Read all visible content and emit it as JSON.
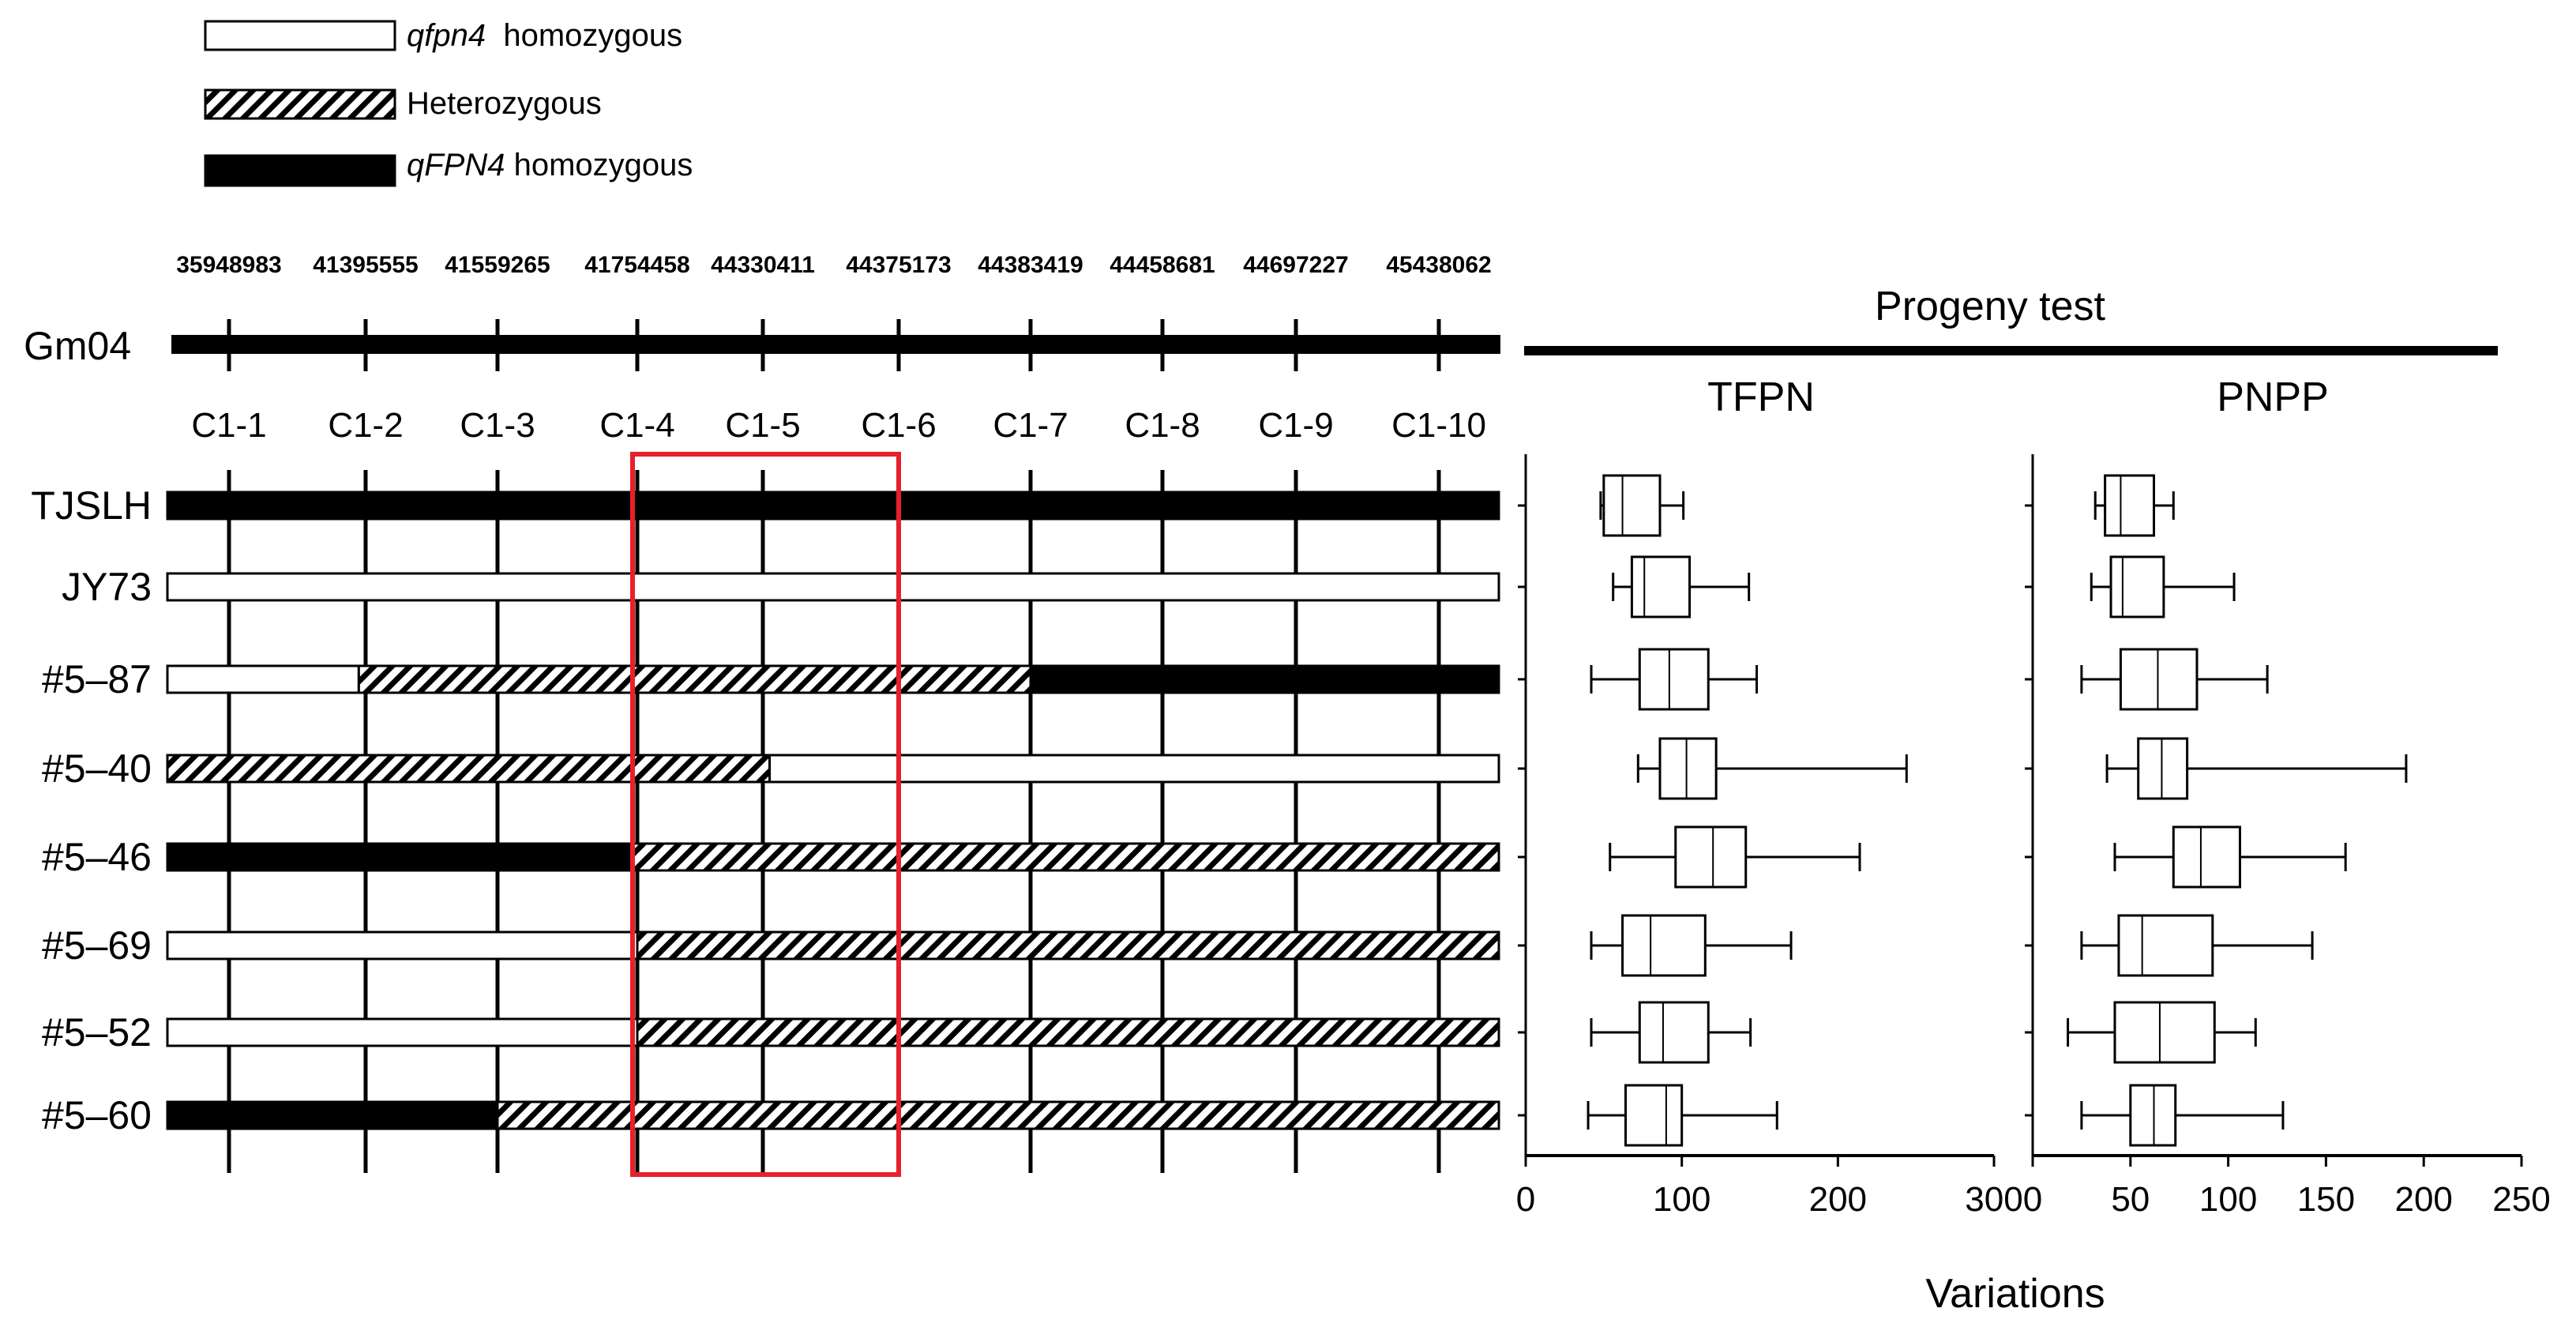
{
  "legend": [
    {
      "style": "open",
      "italic": "qfpn4",
      "rest": "  homozygous"
    },
    {
      "style": "hatched",
      "italic": "",
      "rest": "Heterozygous"
    },
    {
      "style": "solid",
      "italic": "qFPN4",
      "rest": " homozygous"
    }
  ],
  "chromosome": "Gm04",
  "positions": [
    "35948983",
    "41395555",
    "41559265",
    "41754458",
    "44330411",
    "44375173",
    "44383419",
    "44458681",
    "44697227",
    "45438062"
  ],
  "markers": [
    "C1-1",
    "C1-2",
    "C1-3",
    "C1-4",
    "C1-5",
    "C1-6",
    "C1-7",
    "C1-8",
    "C1-9",
    "C1-10"
  ],
  "lines": [
    {
      "name": "TJSLH",
      "segments": [
        [
          "solid",
          0,
          10
        ]
      ]
    },
    {
      "name": "JY73",
      "segments": [
        [
          "open",
          0,
          10
        ]
      ]
    },
    {
      "name": "#5–87",
      "segments": [
        [
          "open",
          0,
          1.95
        ],
        [
          "hatched",
          1.95,
          7.0
        ],
        [
          "solid",
          7.0,
          10
        ]
      ]
    },
    {
      "name": "#5–40",
      "segments": [
        [
          "hatched",
          0,
          5.05
        ],
        [
          "open",
          5.05,
          10
        ]
      ]
    },
    {
      "name": "#5–46",
      "segments": [
        [
          "solid",
          0,
          3.95
        ],
        [
          "hatched",
          3.95,
          10
        ]
      ]
    },
    {
      "name": "#5–69",
      "segments": [
        [
          "open",
          0,
          4.0
        ],
        [
          "hatched",
          4.0,
          10
        ]
      ]
    },
    {
      "name": "#5–52",
      "segments": [
        [
          "open",
          0,
          4.0
        ],
        [
          "hatched",
          4.0,
          10
        ]
      ]
    },
    {
      "name": "#5–60",
      "segments": [
        [
          "solid",
          0,
          3.0
        ],
        [
          "hatched",
          3.0,
          10
        ]
      ]
    }
  ],
  "highlight": {
    "from_marker": "C1-4",
    "to_marker": "C1-6",
    "color": "#e8202a"
  },
  "progeny_title": "Progeny test",
  "x_label": "Variations",
  "panels": [
    {
      "title": "TFPN",
      "ticks": [
        "0",
        "100",
        "200",
        "300"
      ],
      "xlim": [
        0,
        300
      ],
      "boxes": [
        {
          "min": 48,
          "q1": 50,
          "median": 62,
          "q3": 86,
          "max": 101
        },
        {
          "min": 56,
          "q1": 68,
          "median": 76,
          "q3": 105,
          "max": 143
        },
        {
          "min": 42,
          "q1": 73,
          "median": 92,
          "q3": 117,
          "max": 148
        },
        {
          "min": 72,
          "q1": 86,
          "median": 103,
          "q3": 122,
          "max": 244
        },
        {
          "min": 54,
          "q1": 96,
          "median": 120,
          "q3": 141,
          "max": 214
        },
        {
          "min": 42,
          "q1": 62,
          "median": 80,
          "q3": 115,
          "max": 170
        },
        {
          "min": 42,
          "q1": 73,
          "median": 88,
          "q3": 117,
          "max": 144
        },
        {
          "min": 40,
          "q1": 64,
          "median": 90,
          "q3": 100,
          "max": 161
        }
      ]
    },
    {
      "title": "PNPP",
      "ticks": [
        "0",
        "50",
        "100",
        "150",
        "200",
        "250"
      ],
      "xlim": [
        0,
        250
      ],
      "boxes": [
        {
          "min": 32,
          "q1": 37,
          "median": 45,
          "q3": 62,
          "max": 72
        },
        {
          "min": 30,
          "q1": 40,
          "median": 46,
          "q3": 67,
          "max": 103
        },
        {
          "min": 25,
          "q1": 45,
          "median": 64,
          "q3": 84,
          "max": 120
        },
        {
          "min": 38,
          "q1": 54,
          "median": 66,
          "q3": 79,
          "max": 191
        },
        {
          "min": 42,
          "q1": 72,
          "median": 86,
          "q3": 106,
          "max": 160
        },
        {
          "min": 25,
          "q1": 44,
          "median": 56,
          "q3": 92,
          "max": 143
        },
        {
          "min": 18,
          "q1": 42,
          "median": 65,
          "q3": 93,
          "max": 114
        },
        {
          "min": 25,
          "q1": 50,
          "median": 62,
          "q3": 73,
          "max": 128
        }
      ]
    }
  ]
}
